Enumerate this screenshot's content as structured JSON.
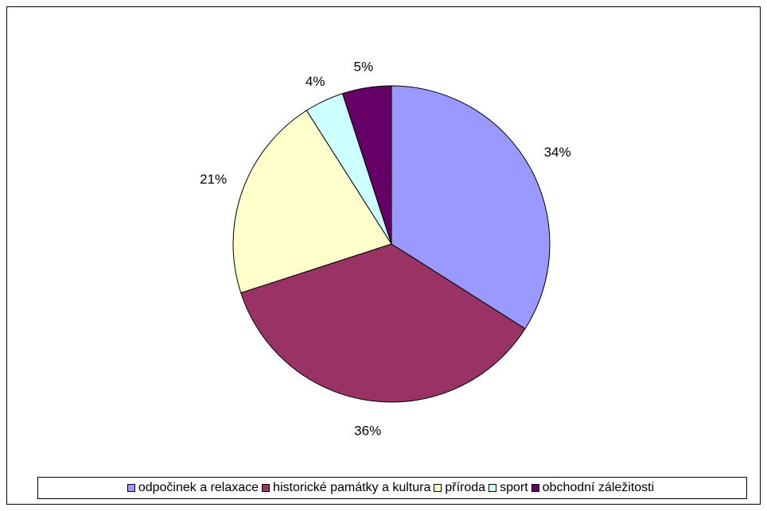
{
  "chart_data": {
    "type": "pie",
    "title": "",
    "categories": [
      "odpočinek a relaxace",
      "historické památky a kultura",
      "příroda",
      "sport",
      "obchodní záležitosti"
    ],
    "values": [
      34,
      36,
      21,
      4,
      5
    ],
    "value_labels": [
      "34%",
      "36%",
      "21%",
      "4%",
      "5%"
    ],
    "colors": [
      "#9999FF",
      "#993366",
      "#FFFFCC",
      "#CCFFFF",
      "#660066"
    ],
    "legend_placement": "bottom",
    "start_angle": "12 o'clock",
    "direction": "clockwise"
  }
}
